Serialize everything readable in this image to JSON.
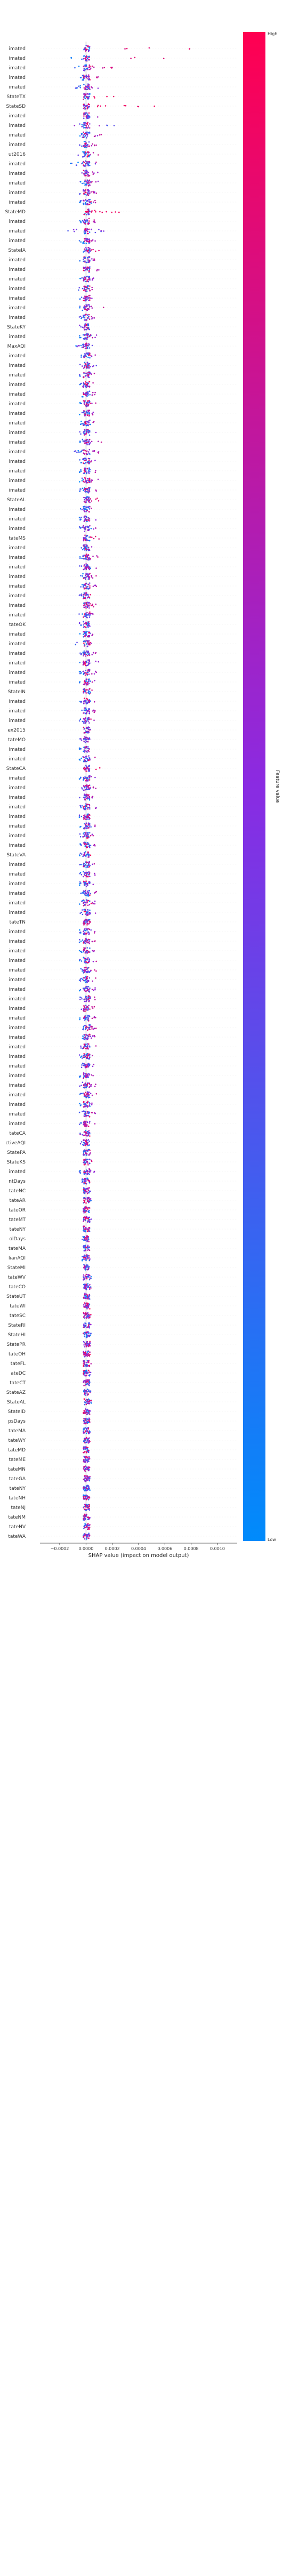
{
  "chart_data": {
    "type": "scatter",
    "subtype": "shap-beeswarm-summary",
    "xlabel": "SHAP value (impact on model output)",
    "x_ticks": [
      -0.0002,
      0.0,
      0.0002,
      0.0004,
      0.0006,
      0.0008,
      0.001
    ],
    "x_tick_labels": [
      "−0.0002",
      "0.0000",
      "0.0002",
      "0.0004",
      "0.0006",
      "0.0008",
      "0.0010"
    ],
    "xlim": [
      -0.00035,
      0.00115
    ],
    "colorbar": {
      "label": "Feature value",
      "high": "High",
      "low": "Low"
    },
    "colors": {
      "high": "#ff0051",
      "mid": "#8a2be2",
      "low": "#008bfb"
    },
    "features": [
      {
        "label": "imated",
        "min": -0.00015,
        "max": 0.00105,
        "tilt": 0.8
      },
      {
        "label": "imated",
        "min": -0.00012,
        "max": 0.0006,
        "tilt": 0.8
      },
      {
        "label": "imated",
        "min": -0.0001,
        "max": 0.0003,
        "tilt": 0.7
      },
      {
        "label": "imated",
        "min": -5e-05,
        "max": 0.00012,
        "tilt": 0.6
      },
      {
        "label": "imated",
        "min": -8e-05,
        "max": 0.0001,
        "tilt": 0.5
      },
      {
        "label": "StateTX",
        "min": -2e-05,
        "max": 0.00025,
        "tilt": 0.9
      },
      {
        "label": "StateSD",
        "min": -2e-05,
        "max": 0.00055,
        "tilt": 0.9
      },
      {
        "label": "imated",
        "min": -5e-05,
        "max": 0.0001,
        "tilt": 0.5
      },
      {
        "label": "imated",
        "min": -0.0001,
        "max": 0.00025,
        "tilt": 0.2
      },
      {
        "label": "imated",
        "min": -5e-05,
        "max": 0.00012,
        "tilt": 0.5
      },
      {
        "label": "imated",
        "min": -5e-05,
        "max": 0.0001,
        "tilt": 0.5
      },
      {
        "label": "ut2016",
        "min": -6e-05,
        "max": 0.0001,
        "tilt": 0.5
      },
      {
        "label": "imated",
        "min": -0.00012,
        "max": 0.00012,
        "tilt": 0.4
      },
      {
        "label": "imated",
        "min": -5e-05,
        "max": 0.0001,
        "tilt": 0.5
      },
      {
        "label": "imated",
        "min": -5e-05,
        "max": 0.0001,
        "tilt": 0.5
      },
      {
        "label": "imated",
        "min": -5e-05,
        "max": 8e-05,
        "tilt": 0.5
      },
      {
        "label": "imated",
        "min": -5e-05,
        "max": 8e-05,
        "tilt": 0.5
      },
      {
        "label": "StateMD",
        "min": -1e-05,
        "max": 0.00032,
        "tilt": 0.9
      },
      {
        "label": "imated",
        "min": -5e-05,
        "max": 8e-05,
        "tilt": 0.5
      },
      {
        "label": "imated",
        "min": -0.00015,
        "max": 0.00015,
        "tilt": 0.3
      },
      {
        "label": "imated",
        "min": -5e-05,
        "max": 8e-05,
        "tilt": 0.5
      },
      {
        "label": "StateIA",
        "min": -2e-05,
        "max": 0.00012,
        "tilt": 0.8
      },
      {
        "label": "imated",
        "min": -5e-05,
        "max": 8e-05,
        "tilt": 0.5
      },
      {
        "label": "imated",
        "min": -5e-05,
        "max": 0.00012,
        "tilt": 0.6
      },
      {
        "label": "imated",
        "min": -5e-05,
        "max": 8e-05,
        "tilt": 0.5
      },
      {
        "label": "imated",
        "min": -6e-05,
        "max": 8e-05,
        "tilt": 0.5
      },
      {
        "label": "imated",
        "min": -5e-05,
        "max": 8e-05,
        "tilt": 0.5
      },
      {
        "label": "imated",
        "min": -5e-05,
        "max": 0.00015,
        "tilt": 0.6
      },
      {
        "label": "imated",
        "min": -6e-05,
        "max": 8e-05,
        "tilt": 0.5
      },
      {
        "label": "StateKY",
        "min": -5e-05,
        "max": 2e-05,
        "tilt": 0.1
      },
      {
        "label": "imated",
        "min": -5e-05,
        "max": 8e-05,
        "tilt": 0.5
      },
      {
        "label": "MaxAQI",
        "min": -8e-05,
        "max": 5e-05,
        "tilt": 0.2
      },
      {
        "label": "imated",
        "min": -5e-05,
        "max": 8e-05,
        "tilt": 0.5
      },
      {
        "label": "imated",
        "min": -5e-05,
        "max": 0.00012,
        "tilt": 0.3
      },
      {
        "label": "imated",
        "min": -5e-05,
        "max": 8e-05,
        "tilt": 0.5
      },
      {
        "label": "imated",
        "min": -5e-05,
        "max": 8e-05,
        "tilt": 0.5
      },
      {
        "label": "imated",
        "min": -5e-05,
        "max": 0.0001,
        "tilt": 0.5
      },
      {
        "label": "imated",
        "min": -5e-05,
        "max": 8e-05,
        "tilt": 0.5
      },
      {
        "label": "imated",
        "min": -5e-05,
        "max": 8e-05,
        "tilt": 0.5
      },
      {
        "label": "imated",
        "min": -5e-05,
        "max": 0.0001,
        "tilt": 0.6
      },
      {
        "label": "imated",
        "min": -5e-05,
        "max": 8e-05,
        "tilt": 0.5
      },
      {
        "label": "imated",
        "min": -5e-05,
        "max": 0.00012,
        "tilt": 0.6
      },
      {
        "label": "imated",
        "min": -0.00012,
        "max": 0.0001,
        "tilt": 0.5
      },
      {
        "label": "imated",
        "min": -5e-05,
        "max": 8e-05,
        "tilt": 0.5
      },
      {
        "label": "imated",
        "min": -5e-05,
        "max": 8e-05,
        "tilt": 0.5
      },
      {
        "label": "imated",
        "min": -5e-05,
        "max": 0.0001,
        "tilt": 0.6
      },
      {
        "label": "imated",
        "min": -5e-05,
        "max": 8e-05,
        "tilt": 0.5
      },
      {
        "label": "StateAL",
        "min": -2e-05,
        "max": 0.00012,
        "tilt": 0.8
      },
      {
        "label": "imated",
        "min": -5e-05,
        "max": 8e-05,
        "tilt": 0.5
      },
      {
        "label": "imated",
        "min": -5e-05,
        "max": 8e-05,
        "tilt": 0.5
      },
      {
        "label": "imated",
        "min": -5e-05,
        "max": 8e-05,
        "tilt": 0.5
      },
      {
        "label": "tateMS",
        "min": -2e-05,
        "max": 0.0001,
        "tilt": 0.8
      },
      {
        "label": "imated",
        "min": -5e-05,
        "max": 8e-05,
        "tilt": 0.5
      },
      {
        "label": "imated",
        "min": -5e-05,
        "max": 0.00012,
        "tilt": 0.6
      },
      {
        "label": "imated",
        "min": -5e-05,
        "max": 8e-05,
        "tilt": 0.5
      },
      {
        "label": "imated",
        "min": -6e-05,
        "max": 8e-05,
        "tilt": 0.5
      },
      {
        "label": "imated",
        "min": -5e-05,
        "max": 8e-05,
        "tilt": 0.5
      },
      {
        "label": "imated",
        "min": -5e-05,
        "max": 8e-05,
        "tilt": 0.5
      },
      {
        "label": "imated",
        "min": -5e-05,
        "max": 8e-05,
        "tilt": 0.5
      },
      {
        "label": "imated",
        "min": -6e-05,
        "max": 8e-05,
        "tilt": 0.5
      },
      {
        "label": "tateOK",
        "min": -5e-05,
        "max": 2e-05,
        "tilt": 0.1
      },
      {
        "label": "imated",
        "min": -5e-05,
        "max": 8e-05,
        "tilt": 0.5
      },
      {
        "label": "imated",
        "min": -8e-05,
        "max": 8e-05,
        "tilt": 0.5
      },
      {
        "label": "imated",
        "min": -5e-05,
        "max": 8e-05,
        "tilt": 0.5
      },
      {
        "label": "imated",
        "min": -5e-05,
        "max": 0.00012,
        "tilt": 0.3
      },
      {
        "label": "imated",
        "min": -5e-05,
        "max": 8e-05,
        "tilt": 0.5
      },
      {
        "label": "imated",
        "min": -5e-05,
        "max": 8e-05,
        "tilt": 0.5
      },
      {
        "label": "StateIN",
        "min": -2e-05,
        "max": 5e-05,
        "tilt": 0.8
      },
      {
        "label": "imated",
        "min": -5e-05,
        "max": 8e-05,
        "tilt": 0.5
      },
      {
        "label": "imated",
        "min": -5e-05,
        "max": 8e-05,
        "tilt": 0.5
      },
      {
        "label": "imated",
        "min": -5e-05,
        "max": 8e-05,
        "tilt": 0.5
      },
      {
        "label": "ex2015",
        "min": -5e-05,
        "max": 5e-05,
        "tilt": 0.5
      },
      {
        "label": "tateMO",
        "min": -5e-05,
        "max": 2e-05,
        "tilt": 0.1
      },
      {
        "label": "imated",
        "min": -5e-05,
        "max": 8e-05,
        "tilt": 0.5
      },
      {
        "label": "imated",
        "min": -5e-05,
        "max": 8e-05,
        "tilt": 0.5
      },
      {
        "label": "StateCA",
        "min": -2e-05,
        "max": 0.00012,
        "tilt": 0.9
      },
      {
        "label": "imated",
        "min": -5e-05,
        "max": 8e-05,
        "tilt": 0.5
      },
      {
        "label": "imated",
        "min": -5e-05,
        "max": 8e-05,
        "tilt": 0.5
      },
      {
        "label": "imated",
        "min": -5e-05,
        "max": 8e-05,
        "tilt": 0.5
      },
      {
        "label": "imated",
        "min": -5e-05,
        "max": 8e-05,
        "tilt": 0.5
      },
      {
        "label": "imated",
        "min": -5e-05,
        "max": 8e-05,
        "tilt": 0.5
      },
      {
        "label": "imated",
        "min": -5e-05,
        "max": 8e-05,
        "tilt": 0.5
      },
      {
        "label": "imated",
        "min": -5e-05,
        "max": 8e-05,
        "tilt": 0.5
      },
      {
        "label": "imated",
        "min": -5e-05,
        "max": 8e-05,
        "tilt": 0.5
      },
      {
        "label": "StateVA",
        "min": -5e-05,
        "max": 5e-05,
        "tilt": 0.5
      },
      {
        "label": "imated",
        "min": -5e-05,
        "max": 8e-05,
        "tilt": 0.5
      },
      {
        "label": "imated",
        "min": -5e-05,
        "max": 8e-05,
        "tilt": 0.5
      },
      {
        "label": "imated",
        "min": -5e-05,
        "max": 8e-05,
        "tilt": 0.5
      },
      {
        "label": "imated",
        "min": -5e-05,
        "max": 8e-05,
        "tilt": 0.5
      },
      {
        "label": "imated",
        "min": -5e-05,
        "max": 8e-05,
        "tilt": 0.5
      },
      {
        "label": "imated",
        "min": -5e-05,
        "max": 8e-05,
        "tilt": 0.5
      },
      {
        "label": "tateTN",
        "min": -2e-05,
        "max": 5e-05,
        "tilt": 0.8
      },
      {
        "label": "imated",
        "min": -5e-05,
        "max": 8e-05,
        "tilt": 0.5
      },
      {
        "label": "imated",
        "min": -5e-05,
        "max": 8e-05,
        "tilt": 0.5
      },
      {
        "label": "imated",
        "min": -5e-05,
        "max": 8e-05,
        "tilt": 0.5
      },
      {
        "label": "imated",
        "min": -5e-05,
        "max": 8e-05,
        "tilt": 0.5
      },
      {
        "label": "imated",
        "min": -5e-05,
        "max": 8e-05,
        "tilt": 0.5
      },
      {
        "label": "imated",
        "min": -5e-05,
        "max": 8e-05,
        "tilt": 0.5
      },
      {
        "label": "imated",
        "min": -5e-05,
        "max": 8e-05,
        "tilt": 0.5
      },
      {
        "label": "imated",
        "min": -5e-05,
        "max": 8e-05,
        "tilt": 0.5
      },
      {
        "label": "imated",
        "min": -5e-05,
        "max": 8e-05,
        "tilt": 0.5
      },
      {
        "label": "imated",
        "min": -5e-05,
        "max": 8e-05,
        "tilt": 0.5
      },
      {
        "label": "imated",
        "min": -5e-05,
        "max": 8e-05,
        "tilt": 0.5
      },
      {
        "label": "imated",
        "min": -5e-05,
        "max": 8e-05,
        "tilt": 0.5
      },
      {
        "label": "imated",
        "min": -5e-05,
        "max": 8e-05,
        "tilt": 0.5
      },
      {
        "label": "imated",
        "min": -5e-05,
        "max": 8e-05,
        "tilt": 0.5
      },
      {
        "label": "imated",
        "min": -5e-05,
        "max": 8e-05,
        "tilt": 0.5
      },
      {
        "label": "imated",
        "min": -5e-05,
        "max": 8e-05,
        "tilt": 0.5
      },
      {
        "label": "imated",
        "min": -5e-05,
        "max": 8e-05,
        "tilt": 0.5
      },
      {
        "label": "imated",
        "min": -5e-05,
        "max": 8e-05,
        "tilt": 0.5
      },
      {
        "label": "imated",
        "min": -5e-05,
        "max": 8e-05,
        "tilt": 0.5
      },
      {
        "label": "imated",
        "min": -5e-05,
        "max": 8e-05,
        "tilt": 0.5
      },
      {
        "label": "imated",
        "min": -5e-05,
        "max": 8e-05,
        "tilt": 0.5
      },
      {
        "label": "tateCA",
        "min": -5e-05,
        "max": 2e-05,
        "tilt": 0.1
      },
      {
        "label": "ctiveAQI",
        "min": -5e-05,
        "max": 2e-05,
        "tilt": 0.2
      },
      {
        "label": "StatePA",
        "min": -2e-05,
        "max": 5e-05,
        "tilt": 0.8
      },
      {
        "label": "StateKS",
        "min": -2e-05,
        "max": 5e-05,
        "tilt": 0.8
      },
      {
        "label": "imated",
        "min": -5e-05,
        "max": 8e-05,
        "tilt": 0.5
      },
      {
        "label": "ntDays",
        "min": -3e-05,
        "max": 3e-05,
        "tilt": 0.5
      },
      {
        "label": "tateNC",
        "min": -2e-05,
        "max": 5e-05,
        "tilt": 0.8
      },
      {
        "label": "tateAR",
        "min": -2e-05,
        "max": 4e-05,
        "tilt": 0.8
      },
      {
        "label": "tateOR",
        "min": -2e-05,
        "max": 4e-05,
        "tilt": 0.8
      },
      {
        "label": "tateMT",
        "min": -2e-05,
        "max": 4e-05,
        "tilt": 0.8
      },
      {
        "label": "tateNY",
        "min": -2e-05,
        "max": 4e-05,
        "tilt": 0.8
      },
      {
        "label": "olDays",
        "min": -3e-05,
        "max": 3e-05,
        "tilt": 0.5
      },
      {
        "label": "tateMA",
        "min": -2e-05,
        "max": 4e-05,
        "tilt": 0.8
      },
      {
        "label": "lianAQI",
        "min": -3e-05,
        "max": 3e-05,
        "tilt": 0.5
      },
      {
        "label": "StateMI",
        "min": -2e-05,
        "max": 4e-05,
        "tilt": 0.8
      },
      {
        "label": "tateWV",
        "min": -2e-05,
        "max": 4e-05,
        "tilt": 0.8
      },
      {
        "label": "tateCO",
        "min": -2e-05,
        "max": 4e-05,
        "tilt": 0.8
      },
      {
        "label": "StateUT",
        "min": -2e-05,
        "max": 4e-05,
        "tilt": 0.8
      },
      {
        "label": "tateWI",
        "min": -2e-05,
        "max": 4e-05,
        "tilt": 0.8
      },
      {
        "label": "tateSC",
        "min": -2e-05,
        "max": 4e-05,
        "tilt": 0.8
      },
      {
        "label": "StateRI",
        "min": -2e-05,
        "max": 4e-05,
        "tilt": 0.8
      },
      {
        "label": "StateHI",
        "min": -2e-05,
        "max": 4e-05,
        "tilt": 0.8
      },
      {
        "label": "StatePR",
        "min": -2e-05,
        "max": 4e-05,
        "tilt": 0.8
      },
      {
        "label": "tateOH",
        "min": -2e-05,
        "max": 4e-05,
        "tilt": 0.8
      },
      {
        "label": "tateFL",
        "min": -2e-05,
        "max": 4e-05,
        "tilt": 0.8
      },
      {
        "label": "ateDC",
        "min": -2e-05,
        "max": 4e-05,
        "tilt": 0.8
      },
      {
        "label": "tateCT",
        "min": -2e-05,
        "max": 4e-05,
        "tilt": 0.8
      },
      {
        "label": "StateAZ",
        "min": -2e-05,
        "max": 4e-05,
        "tilt": 0.8
      },
      {
        "label": "StateAL",
        "min": -2e-05,
        "max": 4e-05,
        "tilt": 0.8
      },
      {
        "label": "StateID",
        "min": -2e-05,
        "max": 4e-05,
        "tilt": 0.8
      },
      {
        "label": "psDays",
        "min": -2e-05,
        "max": 3e-05,
        "tilt": 0.5
      },
      {
        "label": "tateMA",
        "min": -2e-05,
        "max": 3e-05,
        "tilt": 0.8
      },
      {
        "label": "tateWY",
        "min": -2e-05,
        "max": 3e-05,
        "tilt": 0.8
      },
      {
        "label": "tateMD",
        "min": -2e-05,
        "max": 3e-05,
        "tilt": 0.8
      },
      {
        "label": "tateME",
        "min": -2e-05,
        "max": 3e-05,
        "tilt": 0.8
      },
      {
        "label": "tateMN",
        "min": -2e-05,
        "max": 3e-05,
        "tilt": 0.8
      },
      {
        "label": "tateGA",
        "min": -2e-05,
        "max": 3e-05,
        "tilt": 0.8
      },
      {
        "label": "tateNY",
        "min": -2e-05,
        "max": 3e-05,
        "tilt": 0.8
      },
      {
        "label": "tateNH",
        "min": -2e-05,
        "max": 3e-05,
        "tilt": 0.8
      },
      {
        "label": "tateNJ",
        "min": -2e-05,
        "max": 3e-05,
        "tilt": 0.8
      },
      {
        "label": "tateNM",
        "min": -2e-05,
        "max": 3e-05,
        "tilt": 0.8
      },
      {
        "label": "tateNV",
        "min": -2e-05,
        "max": 3e-05,
        "tilt": 0.8
      },
      {
        "label": "tateWA",
        "min": -2e-05,
        "max": 3e-05,
        "tilt": 0.8
      }
    ]
  }
}
